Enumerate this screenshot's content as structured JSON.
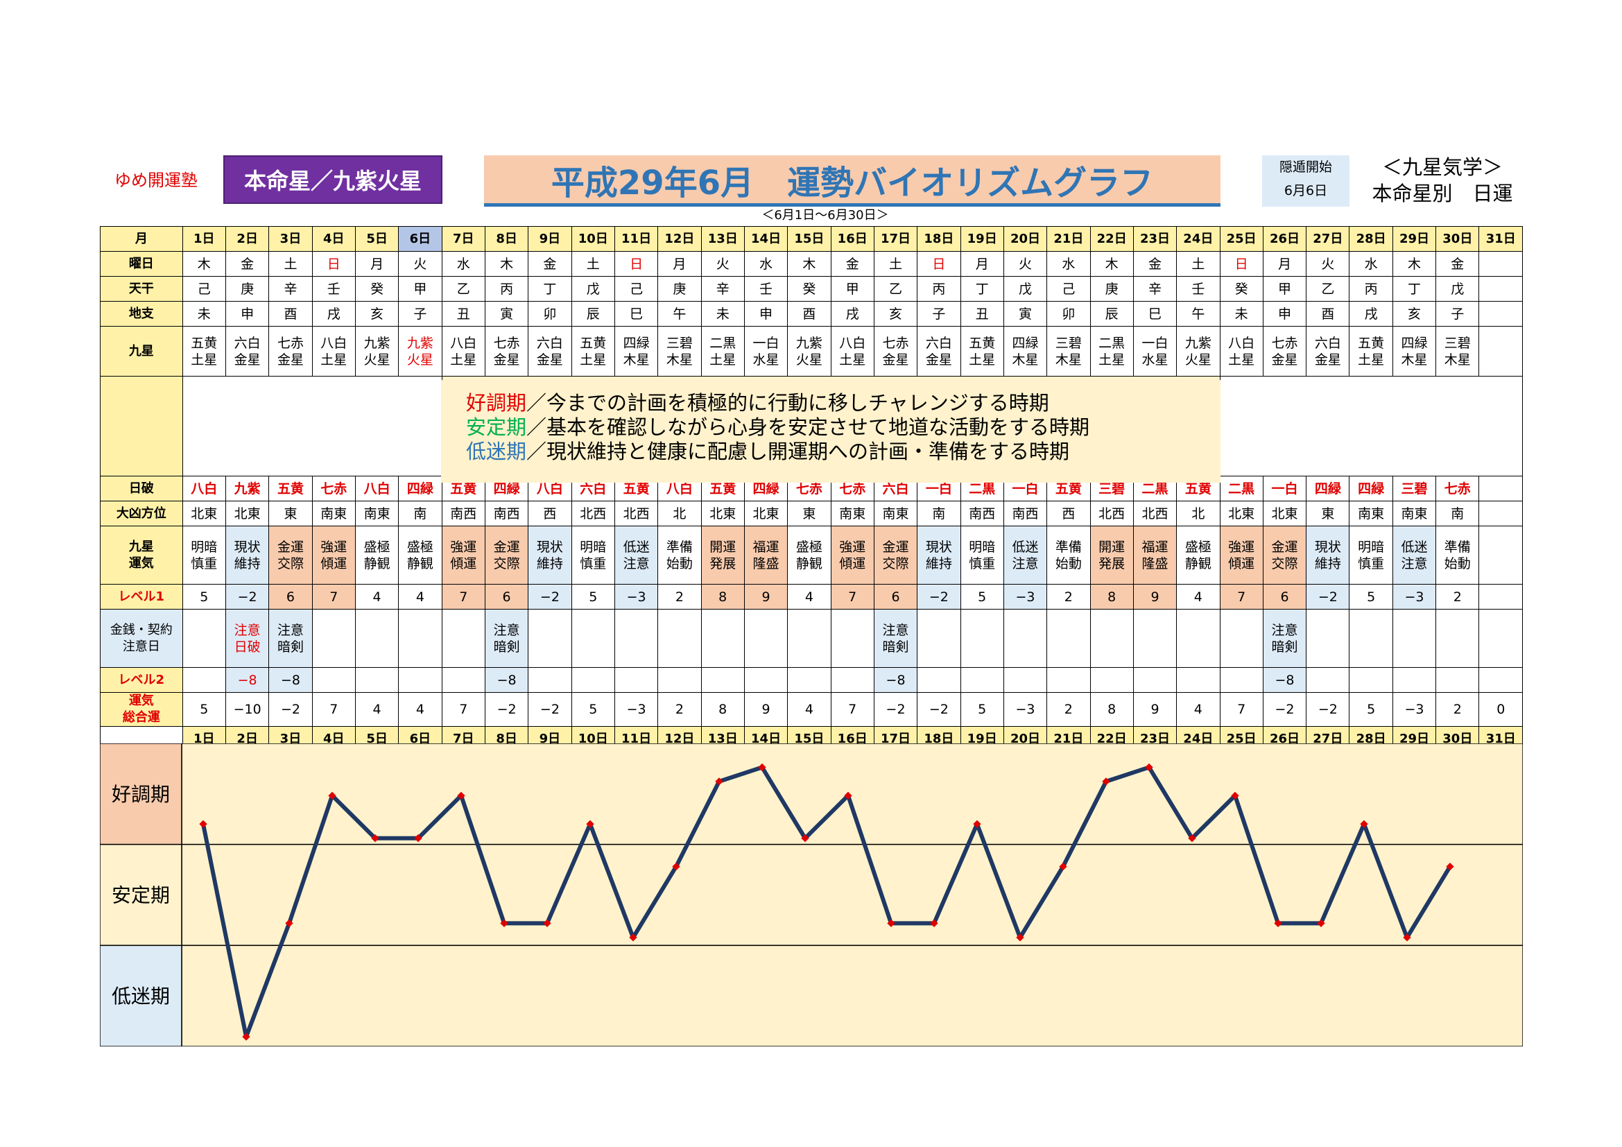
{
  "header": {
    "school": "ゆめ開運塾",
    "honmei": "本命星／九紫火星",
    "title": "平成29年6月　運勢バイオリズムグラフ",
    "period": "＜6月1日～6月30日＞",
    "inton_label": "隠遁開始",
    "inton_date": "6月6日",
    "kyusei_line1": "＜九星気学＞",
    "kyusei_line2": "本命星別　日運"
  },
  "row_labels": {
    "month": "月",
    "youbi": "曜日",
    "tenkan": "天干",
    "chishi": "地支",
    "kyusei": "九星",
    "nippa": "日破",
    "daikyo": "大凶方位",
    "kyusei_unki": "九星運気",
    "level1": "レベル1",
    "kinsen": "金銭・契約注意日",
    "level2": "レベル2",
    "unki_total": "運気総合運"
  },
  "days": [
    "1日",
    "2日",
    "3日",
    "4日",
    "5日",
    "6日",
    "7日",
    "8日",
    "9日",
    "10日",
    "11日",
    "12日",
    "13日",
    "14日",
    "15日",
    "16日",
    "17日",
    "18日",
    "19日",
    "20日",
    "21日",
    "22日",
    "23日",
    "24日",
    "25日",
    "26日",
    "27日",
    "28日",
    "29日",
    "30日",
    "31日"
  ],
  "youbi": [
    "木",
    "金",
    "土",
    "日",
    "月",
    "火",
    "水",
    "木",
    "金",
    "土",
    "日",
    "月",
    "火",
    "水",
    "木",
    "金",
    "土",
    "日",
    "月",
    "火",
    "水",
    "木",
    "金",
    "土",
    "日",
    "月",
    "火",
    "水",
    "木",
    "金",
    ""
  ],
  "tenkan": [
    "己",
    "庚",
    "辛",
    "壬",
    "癸",
    "甲",
    "乙",
    "丙",
    "丁",
    "戊",
    "己",
    "庚",
    "辛",
    "壬",
    "癸",
    "甲",
    "乙",
    "丙",
    "丁",
    "戊",
    "己",
    "庚",
    "辛",
    "壬",
    "癸",
    "甲",
    "乙",
    "丙",
    "丁",
    "戊",
    ""
  ],
  "chishi": [
    "未",
    "申",
    "酉",
    "戌",
    "亥",
    "子",
    "丑",
    "寅",
    "卯",
    "辰",
    "巳",
    "午",
    "未",
    "申",
    "酉",
    "戌",
    "亥",
    "子",
    "丑",
    "寅",
    "卯",
    "辰",
    "巳",
    "午",
    "未",
    "申",
    "酉",
    "戌",
    "亥",
    "子",
    ""
  ],
  "kyusei": [
    "五黄土星",
    "六白金星",
    "七赤金星",
    "八白土星",
    "九紫火星",
    "九紫火星",
    "八白土星",
    "七赤金星",
    "六白金星",
    "五黄土星",
    "四緑木星",
    "三碧木星",
    "二黒土星",
    "一白水星",
    "九紫火星",
    "八白土星",
    "七赤金星",
    "六白金星",
    "五黄土星",
    "四緑木星",
    "三碧木星",
    "二黒土星",
    "一白水星",
    "九紫火星",
    "八白土星",
    "七赤金星",
    "六白金星",
    "五黄土星",
    "四緑木星",
    "三碧木星",
    ""
  ],
  "legend": [
    {
      "term": "好調期",
      "text": "／今までの計画を積極的に行動に移しチャレンジする時期",
      "color": "#e00000"
    },
    {
      "term": "安定期",
      "text": "／基本を確認しながら心身を安定させて地道な活動をする時期",
      "color": "#00b050"
    },
    {
      "term": "低迷期",
      "text": "／現状維持と健康に配慮し開運期への計画・準備をする時期",
      "color": "#2f75b5"
    }
  ],
  "nippa": [
    "八白",
    "九紫",
    "五黄",
    "七赤",
    "八白",
    "四緑",
    "五黄",
    "四緑",
    "八白",
    "六白",
    "五黄",
    "八白",
    "五黄",
    "四緑",
    "七赤",
    "七赤",
    "六白",
    "一白",
    "二黒",
    "一白",
    "五黄",
    "三碧",
    "二黒",
    "五黄",
    "二黒",
    "一白",
    "四緑",
    "四緑",
    "三碧",
    "七赤",
    ""
  ],
  "daikyo": [
    "北東",
    "北東",
    "東",
    "南東",
    "南東",
    "南",
    "南西",
    "南西",
    "西",
    "北西",
    "北西",
    "北",
    "北東",
    "北東",
    "東",
    "南東",
    "南東",
    "南",
    "南西",
    "南西",
    "西",
    "北西",
    "北西",
    "北",
    "北東",
    "北東",
    "東",
    "南東",
    "南東",
    "南",
    ""
  ],
  "kyusei_unki": [
    "明暗慎重",
    "現状維持",
    "金運交際",
    "強運傾運",
    "盛極静観",
    "盛極静観",
    "強運傾運",
    "金運交際",
    "現状維持",
    "明暗慎重",
    "低迷注意",
    "準備始動",
    "開運発展",
    "福運隆盛",
    "盛極静観",
    "強運傾運",
    "金運交際",
    "現状維持",
    "明暗慎重",
    "低迷注意",
    "準備始動",
    "開運発展",
    "福運隆盛",
    "盛極静観",
    "強運傾運",
    "金運交際",
    "現状維持",
    "明暗慎重",
    "低迷注意",
    "準備始動",
    ""
  ],
  "level1": [
    "5",
    "−2",
    "6",
    "7",
    "4",
    "4",
    "7",
    "6",
    "−2",
    "5",
    "−3",
    "2",
    "8",
    "9",
    "4",
    "7",
    "6",
    "−2",
    "5",
    "−3",
    "2",
    "8",
    "9",
    "4",
    "7",
    "6",
    "−2",
    "5",
    "−3",
    "2",
    ""
  ],
  "kinsen": [
    "",
    "注意日破",
    "注意暗剣",
    "",
    "",
    "",
    "",
    "注意暗剣",
    "",
    "",
    "",
    "",
    "",
    "",
    "",
    "",
    "注意暗剣",
    "",
    "",
    "",
    "",
    "",
    "",
    "",
    "",
    "注意暗剣",
    "",
    "",
    "",
    "",
    ""
  ],
  "level2": [
    "",
    "−8",
    "−8",
    "",
    "",
    "",
    "",
    "−8",
    "",
    "",
    "",
    "",
    "",
    "",
    "",
    "",
    "−8",
    "",
    "",
    "",
    "",
    "",
    "",
    "",
    "",
    "−8",
    "",
    "",
    "",
    "",
    ""
  ],
  "unki_total": [
    "5",
    "−10",
    "−2",
    "7",
    "4",
    "4",
    "7",
    "−2",
    "−2",
    "5",
    "−3",
    "2",
    "8",
    "9",
    "4",
    "7",
    "−2",
    "−2",
    "5",
    "−3",
    "2",
    "8",
    "9",
    "4",
    "7",
    "−2",
    "−2",
    "5",
    "−3",
    "2",
    "0"
  ],
  "chart_data": {
    "type": "line",
    "title": "",
    "xlabel": "",
    "ylabel": "",
    "categories": [
      "1日",
      "2日",
      "3日",
      "4日",
      "5日",
      "6日",
      "7日",
      "8日",
      "9日",
      "10日",
      "11日",
      "12日",
      "13日",
      "14日",
      "15日",
      "16日",
      "17日",
      "18日",
      "19日",
      "20日",
      "21日",
      "22日",
      "23日",
      "24日",
      "25日",
      "26日",
      "27日",
      "28日",
      "29日",
      "30日"
    ],
    "values": [
      5,
      -10,
      -2,
      7,
      4,
      4,
      7,
      -2,
      -2,
      5,
      -3,
      2,
      8,
      9,
      4,
      7,
      -2,
      -2,
      5,
      -3,
      2,
      8,
      9,
      4,
      7,
      -2,
      -2,
      5,
      -3,
      2
    ],
    "ylim": [
      -10,
      10
    ],
    "bands": [
      {
        "name": "好調期",
        "range": [
          3.5,
          10
        ],
        "color": "#f8cbad"
      },
      {
        "name": "安定期",
        "range": [
          -3,
          3.5
        ],
        "color": "#fff2cc"
      },
      {
        "name": "低迷期",
        "range": [
          -10,
          -3
        ],
        "color": "#ddebf7"
      }
    ],
    "line_color": "#1f3864",
    "marker_color": "#e00000",
    "grid": false
  }
}
